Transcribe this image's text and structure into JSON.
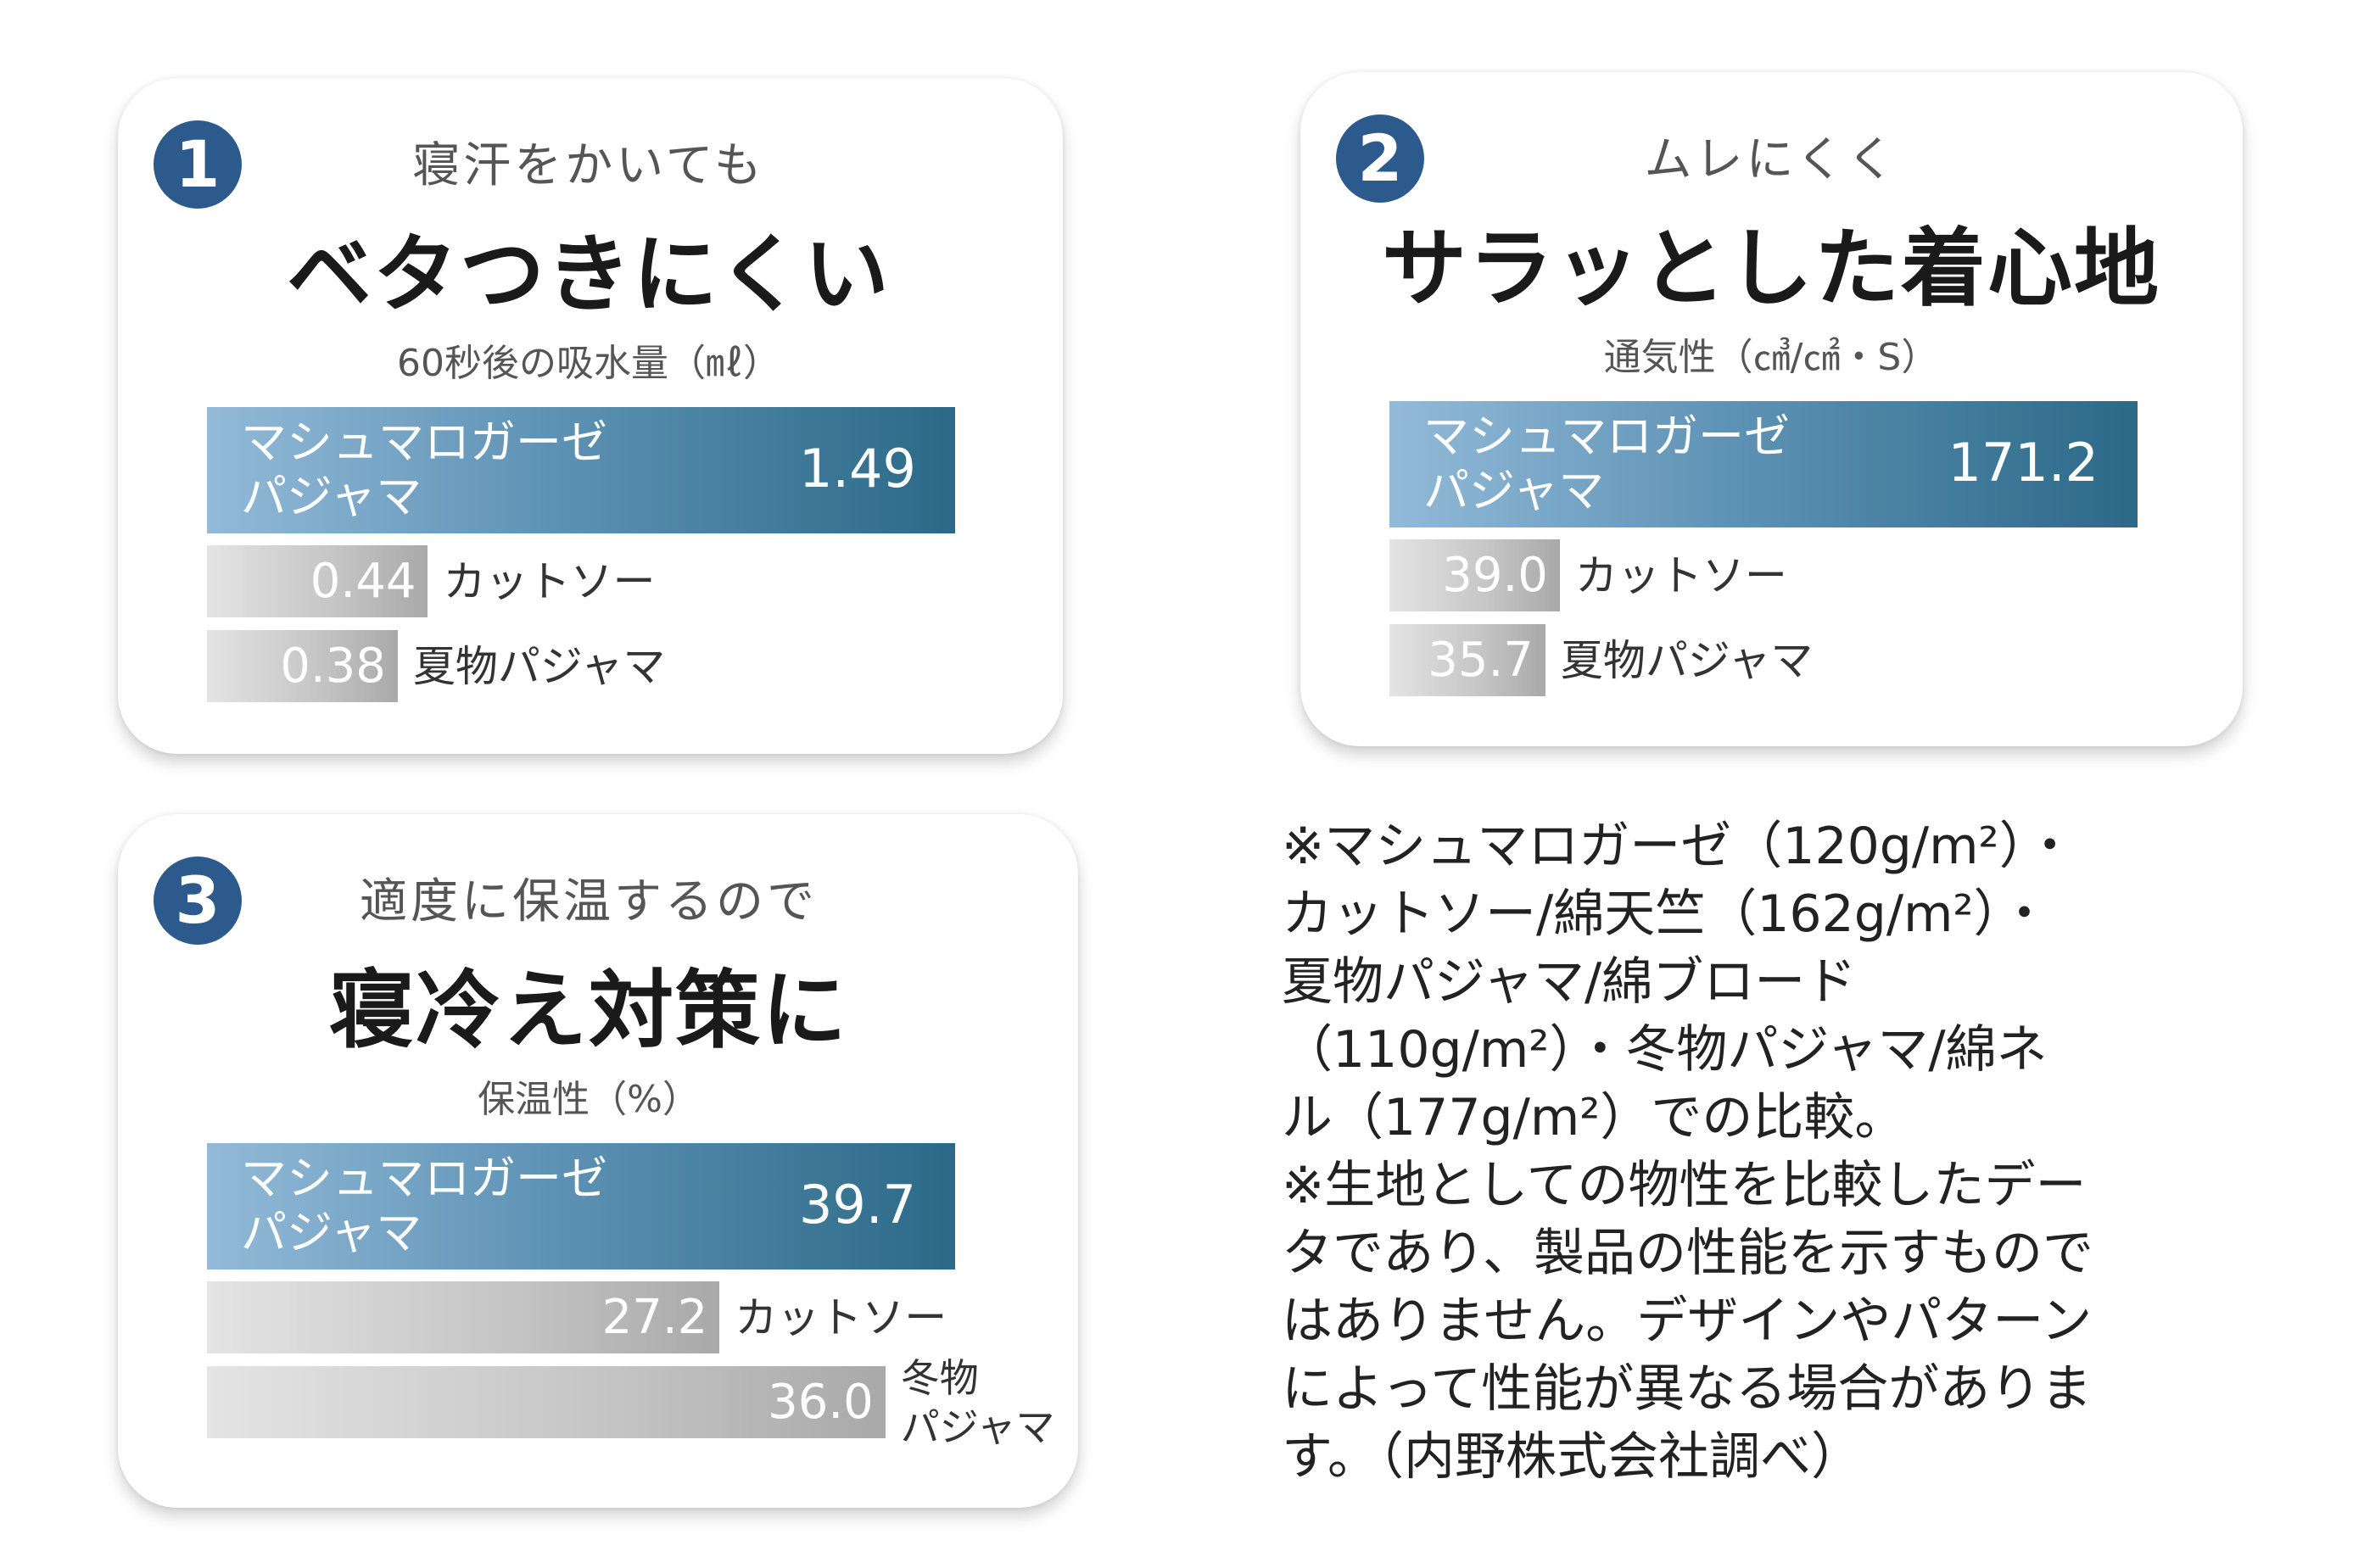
{
  "cards": [
    {
      "number": "1",
      "subtitle": "寝汗をかいても",
      "title": "ベタつきにくい"
    },
    {
      "number": "2",
      "subtitle": "ムレにくく",
      "title": "サラッとした着心地"
    },
    {
      "number": "3",
      "subtitle": "適度に保温するので",
      "title": "寝冷え対策に"
    }
  ],
  "colors": {
    "badge": "#2d5a8c",
    "highlight_bar": "#2b6987",
    "comparison_bar": "#b5b5b5"
  },
  "chart_data": [
    {
      "type": "bar",
      "orientation": "horizontal",
      "title": "60秒後の吸水量（㎖）",
      "categories": [
        "マシュマロガーゼ\nパジャマ",
        "カットソー",
        "夏物パジャマ"
      ],
      "values": [
        1.49,
        0.44,
        0.38
      ],
      "value_labels": [
        "1.49",
        "0.44",
        "0.38"
      ]
    },
    {
      "type": "bar",
      "orientation": "horizontal",
      "title": "通気性（㎤/㎠・S）",
      "categories": [
        "マシュマロガーゼ\nパジャマ",
        "カットソー",
        "夏物パジャマ"
      ],
      "values": [
        171.2,
        39.0,
        35.7
      ],
      "value_labels": [
        "171.2",
        "39.0",
        "35.7"
      ]
    },
    {
      "type": "bar",
      "orientation": "horizontal",
      "title": "保温性（%）",
      "categories": [
        "マシュマロガーゼ\nパジャマ",
        "カットソー",
        "冬物\nパジャマ"
      ],
      "values": [
        39.7,
        27.2,
        36.0
      ],
      "value_labels": [
        "39.7",
        "27.2",
        "36.0"
      ]
    }
  ],
  "notes": "※マシュマロガーゼ（120g/m²）・\nカットソー/綿天竺（162g/m²）・\n夏物パジャマ/綿ブロード\n（110g/m²）・冬物パジャマ/綿ネ\nル（177g/m²）での比較。\n※生地としての物性を比較したデー\nタであり、製品の性能を示すもので\nはありません。デザインやパターン\nによって性能が異なる場合がありま\nす。（内野株式会社調べ）"
}
